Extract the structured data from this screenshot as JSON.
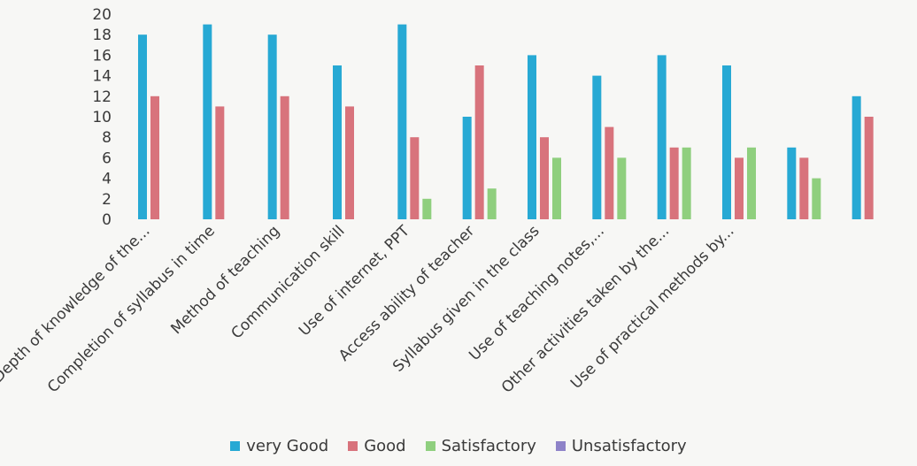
{
  "chart_data": {
    "type": "bar",
    "title": "",
    "xlabel": "",
    "ylabel": "",
    "ylim": [
      0,
      20
    ],
    "yticks": [
      0,
      2,
      4,
      6,
      8,
      10,
      12,
      14,
      16,
      18,
      20
    ],
    "grid": false,
    "legend_position": "bottom",
    "categories": [
      "Depth of knowledge of the...",
      "Completion of syllabus in time",
      "Method of teaching",
      "Communication skill",
      "Use of internet, PPT",
      "Access ability of teacher",
      "Syllabus given in the class",
      "Use of teaching notes,...",
      "Other activities taken by the...",
      "Use of practical methods by...",
      "",
      ""
    ],
    "series": [
      {
        "name": "very Good",
        "color": "#27a9d4",
        "values": [
          18,
          19,
          18,
          15,
          19,
          10,
          16,
          14,
          16,
          15,
          7,
          12
        ]
      },
      {
        "name": "Good",
        "color": "#d8737c",
        "values": [
          12,
          11,
          12,
          11,
          8,
          15,
          8,
          9,
          7,
          6,
          6,
          10
        ]
      },
      {
        "name": "Satisfactory",
        "color": "#8fcf7e",
        "values": [
          0,
          0,
          0,
          0,
          2,
          3,
          6,
          6,
          7,
          7,
          4,
          0
        ]
      },
      {
        "name": "Unsatisfactory",
        "color": "#8e83c8",
        "values": [
          0,
          0,
          0,
          0,
          0,
          0,
          0,
          0,
          0,
          0,
          0,
          0
        ]
      }
    ]
  }
}
